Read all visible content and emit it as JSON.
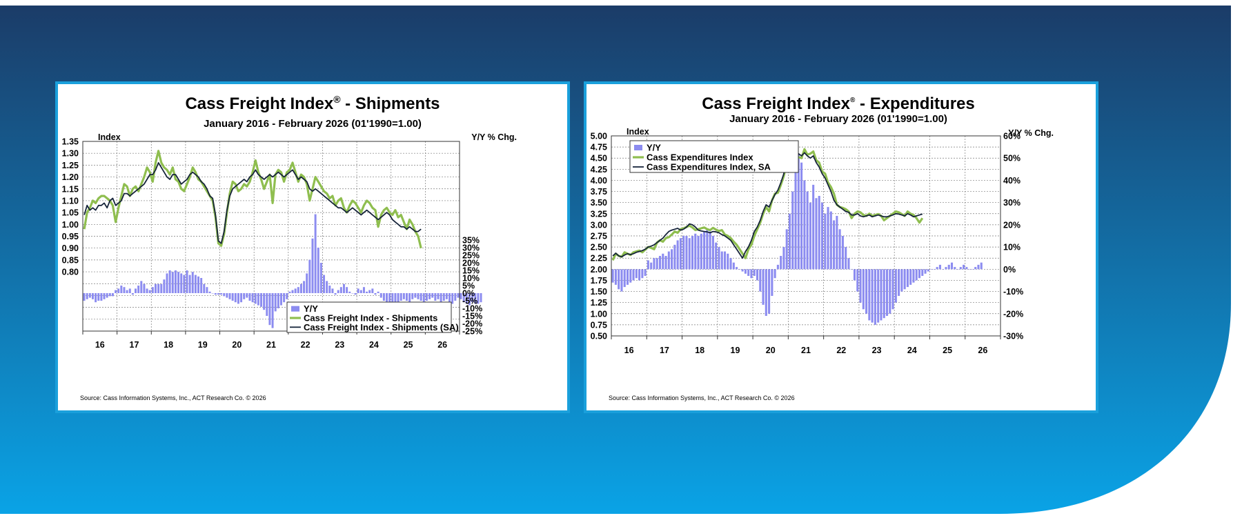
{
  "colors": {
    "bg_top": "#1b3c68",
    "bg_bottom": "#0aa3e6",
    "panel_border": "#1aa0dc",
    "bar": "#8c8cf0",
    "index_line": "#8fbe4f",
    "sa_line": "#16243a"
  },
  "charts": [
    {
      "id": "shipments",
      "title_main": "Cass Freight Index",
      "title_mark": "®",
      "title_rest": " - Shipments",
      "subtitle": "January 2016 - February 2026 (01'1990=1.00)",
      "left_axis_name": "Index",
      "right_axis_name": "Y/Y % Chg.",
      "source": "Source: Cass Information Systems, Inc., ACT Research Co. © 2026",
      "legend": [
        "Y/Y",
        "Cass Freight Index - Shipments",
        "Cass Freight Index - Shipments (SA)"
      ],
      "chart_data": {
        "type": "bar+line",
        "x_tick_labels": [
          "16",
          "17",
          "18",
          "19",
          "20",
          "21",
          "22",
          "23",
          "24",
          "25",
          "26"
        ],
        "x_range": [
          2016,
          2027
        ],
        "left_ticks": [
          "1.35",
          "1.30",
          "1.25",
          "1.20",
          "1.15",
          "1.10",
          "1.05",
          "1.00",
          "0.95",
          "0.90",
          "0.85",
          "0.80"
        ],
        "left_range": [
          0.55,
          1.35
        ],
        "right_ticks": [
          "35%",
          "30%",
          "25%",
          "20%",
          "15%",
          "10%",
          "5%",
          "0%",
          "-5%",
          "-10%",
          "-15%",
          "-20%",
          "-25%"
        ],
        "right_range": [
          -25,
          100
        ],
        "grid": true,
        "legend_position": "bottom-right",
        "series": [
          {
            "name": "Y/Y",
            "kind": "bar",
            "axis": "right",
            "start": "2016-01",
            "values": [
              -5,
              -4,
              -3,
              -4,
              -6,
              -5,
              -5,
              -4,
              -3,
              -2,
              -2,
              2,
              3,
              5,
              4,
              2,
              3,
              -1,
              3,
              5,
              8,
              6,
              3,
              2,
              4,
              6,
              6,
              6,
              9,
              13,
              15,
              14,
              15,
              14,
              13,
              12,
              15,
              12,
              14,
              12,
              11,
              10,
              6,
              4,
              1,
              0,
              -1,
              -1,
              -1,
              -2,
              -3,
              -4,
              -5,
              -6,
              -7,
              -6,
              -4,
              -3,
              -5,
              -6,
              -7,
              -8,
              -9,
              -11,
              -15,
              -21,
              -23,
              -12,
              -10,
              -8,
              -6,
              -4,
              1,
              2,
              3,
              4,
              6,
              8,
              13,
              22,
              36,
              52,
              30,
              20,
              12,
              8,
              5,
              3,
              -1,
              2,
              4,
              6,
              4,
              1,
              0,
              -1,
              3,
              2,
              4,
              1,
              2,
              3,
              -1,
              1,
              -3,
              -5,
              -7,
              -9,
              -10,
              -8,
              -6,
              -5,
              -4,
              -5,
              -6,
              -4,
              -3,
              -4,
              -5,
              -6,
              -5,
              -4,
              -3,
              -5,
              -4,
              -6,
              -5,
              -4,
              -6,
              -7,
              -5,
              -3,
              -4,
              -6,
              -7,
              -8,
              -6,
              -7,
              -7,
              -6
            ]
          },
          {
            "name": "Cass Freight Index - Shipments",
            "kind": "line",
            "axis": "left",
            "start": "2016-01",
            "values": [
              0.98,
              1.05,
              1.07,
              1.1,
              1.09,
              1.11,
              1.12,
              1.12,
              1.11,
              1.1,
              1.08,
              1.01,
              1.07,
              1.12,
              1.17,
              1.16,
              1.12,
              1.15,
              1.16,
              1.14,
              1.17,
              1.2,
              1.24,
              1.22,
              1.18,
              1.26,
              1.31,
              1.26,
              1.24,
              1.23,
              1.21,
              1.24,
              1.19,
              1.18,
              1.15,
              1.14,
              1.17,
              1.2,
              1.24,
              1.22,
              1.19,
              1.18,
              1.16,
              1.14,
              1.12,
              1.1,
              1.03,
              0.92,
              0.91,
              0.96,
              1.05,
              1.13,
              1.18,
              1.17,
              1.14,
              1.15,
              1.17,
              1.16,
              1.18,
              1.22,
              1.27,
              1.22,
              1.19,
              1.15,
              1.18,
              1.21,
              1.09,
              1.21,
              1.23,
              1.22,
              1.18,
              1.22,
              1.23,
              1.26,
              1.22,
              1.18,
              1.21,
              1.2,
              1.17,
              1.1,
              1.15,
              1.2,
              1.18,
              1.16,
              1.14,
              1.13,
              1.11,
              1.12,
              1.08,
              1.1,
              1.11,
              1.07,
              1.05,
              1.08,
              1.1,
              1.09,
              1.07,
              1.05,
              1.08,
              1.1,
              1.09,
              1.07,
              1.06,
              0.99,
              1.04,
              1.06,
              1.07,
              1.05,
              1.04,
              1.06,
              1.03,
              1.04,
              1.01,
              0.98,
              1.02,
              1.0,
              0.97,
              0.95,
              0.9
            ]
          },
          {
            "name": "Cass Freight Index - Shipments (SA)",
            "kind": "line",
            "axis": "left",
            "start": "2016-01",
            "values": [
              1.04,
              1.08,
              1.06,
              1.07,
              1.06,
              1.08,
              1.08,
              1.09,
              1.07,
              1.1,
              1.11,
              1.08,
              1.09,
              1.1,
              1.13,
              1.13,
              1.12,
              1.13,
              1.14,
              1.15,
              1.16,
              1.17,
              1.19,
              1.21,
              1.21,
              1.23,
              1.26,
              1.24,
              1.22,
              1.2,
              1.19,
              1.21,
              1.21,
              1.19,
              1.17,
              1.18,
              1.19,
              1.21,
              1.22,
              1.21,
              1.2,
              1.18,
              1.17,
              1.15,
              1.12,
              1.11,
              1.04,
              0.93,
              0.92,
              0.97,
              1.06,
              1.12,
              1.15,
              1.16,
              1.17,
              1.18,
              1.19,
              1.18,
              1.2,
              1.21,
              1.23,
              1.21,
              1.2,
              1.19,
              1.2,
              1.21,
              1.2,
              1.21,
              1.22,
              1.21,
              1.2,
              1.21,
              1.22,
              1.23,
              1.21,
              1.19,
              1.2,
              1.19,
              1.18,
              1.15,
              1.14,
              1.15,
              1.14,
              1.13,
              1.12,
              1.11,
              1.1,
              1.09,
              1.08,
              1.07,
              1.07,
              1.06,
              1.05,
              1.06,
              1.07,
              1.06,
              1.05,
              1.04,
              1.05,
              1.06,
              1.05,
              1.04,
              1.03,
              1.02,
              1.03,
              1.04,
              1.05,
              1.04,
              1.02,
              1.01,
              1.0,
              0.99,
              0.99,
              0.98,
              0.99,
              0.98,
              0.97,
              0.97,
              0.98
            ]
          }
        ]
      }
    },
    {
      "id": "expenditures",
      "title_main": "Cass Freight Index",
      "title_mark": "®",
      "title_rest": " - Expenditures",
      "subtitle": "January 2016 - February 2026 (01'1990=1.00)",
      "left_axis_name": "Index",
      "right_axis_name": "Y/Y % Chg.",
      "source": "Source: Cass Information Systems, Inc., ACT Research Co. © 2026",
      "legend": [
        "Y/Y",
        "Cass Expenditures Index",
        "Cass Expenditures Index, SA"
      ],
      "chart_data": {
        "type": "bar+line",
        "x_tick_labels": [
          "16",
          "17",
          "18",
          "19",
          "20",
          "21",
          "22",
          "23",
          "24",
          "25",
          "26"
        ],
        "x_range": [
          2016,
          2027
        ],
        "left_ticks": [
          "5.00",
          "4.75",
          "4.50",
          "4.25",
          "4.00",
          "3.75",
          "3.50",
          "3.25",
          "3.00",
          "2.75",
          "2.50",
          "2.25",
          "2.00",
          "1.75",
          "1.50",
          "1.25",
          "1.00",
          "0.75",
          "0.50"
        ],
        "left_range": [
          0.5,
          5.0
        ],
        "right_ticks": [
          "60%",
          "50%",
          "40%",
          "30%",
          "20%",
          "10%",
          "0%",
          "-10%",
          "-20%",
          "-30%"
        ],
        "right_range": [
          -30,
          60
        ],
        "grid": true,
        "legend_position": "top-left",
        "series": [
          {
            "name": "Y/Y",
            "kind": "bar",
            "axis": "right",
            "start": "2016-01",
            "values": [
              -6,
              -7,
              -9,
              -10,
              -8,
              -7,
              -6,
              -5,
              -4,
              -5,
              -4,
              -3,
              4,
              3,
              5,
              5,
              6,
              7,
              6,
              8,
              9,
              11,
              13,
              14,
              15,
              15,
              14,
              15,
              16,
              15,
              16,
              17,
              18,
              17,
              15,
              12,
              10,
              8,
              8,
              7,
              5,
              3,
              1,
              0,
              -1,
              -2,
              -3,
              -4,
              -3,
              -5,
              -10,
              -16,
              -21,
              -20,
              -12,
              -4,
              2,
              6,
              10,
              18,
              25,
              35,
              45,
              52,
              48,
              40,
              35,
              30,
              38,
              32,
              33,
              30,
              25,
              28,
              26,
              22,
              24,
              18,
              15,
              10,
              5,
              0,
              -5,
              -10,
              -15,
              -18,
              -20,
              -23,
              -24,
              -25,
              -24,
              -23,
              -22,
              -21,
              -20,
              -18,
              -15,
              -12,
              -10,
              -9,
              -8,
              -7,
              -6,
              -5,
              -4,
              -3,
              -2,
              -1,
              0,
              0,
              1,
              2,
              0,
              1,
              2,
              3,
              1,
              0,
              1,
              2,
              1,
              0,
              0,
              1,
              2,
              3
            ]
          },
          {
            "name": "Cass Expenditures Index",
            "kind": "line",
            "axis": "left",
            "start": "2016-01",
            "values": [
              2.2,
              2.35,
              2.3,
              2.28,
              2.38,
              2.35,
              2.32,
              2.38,
              2.4,
              2.42,
              2.38,
              2.44,
              2.5,
              2.48,
              2.45,
              2.6,
              2.65,
              2.62,
              2.7,
              2.72,
              2.78,
              2.85,
              2.82,
              2.9,
              2.92,
              2.95,
              2.98,
              2.94,
              2.88,
              2.9,
              2.92,
              2.94,
              2.9,
              2.88,
              2.93,
              2.89,
              2.86,
              2.88,
              2.78,
              2.75,
              2.7,
              2.62,
              2.55,
              2.45,
              2.35,
              2.25,
              2.45,
              2.55,
              2.75,
              2.9,
              3.05,
              3.25,
              3.4,
              3.3,
              3.55,
              3.7,
              3.72,
              3.9,
              4.1,
              4.4,
              4.5,
              4.35,
              4.45,
              4.52,
              4.5,
              4.7,
              4.58,
              4.6,
              4.65,
              4.45,
              4.4,
              4.2,
              4.15,
              3.95,
              3.85,
              3.7,
              3.45,
              3.4,
              3.38,
              3.35,
              3.3,
              3.15,
              3.25,
              3.3,
              3.28,
              3.22,
              3.2,
              3.25,
              3.2,
              3.22,
              3.24,
              3.2,
              3.1,
              3.15,
              3.2,
              3.25,
              3.3,
              3.28,
              3.24,
              3.2,
              3.3,
              3.25,
              3.22,
              3.15,
              3.05,
              3.15
            ]
          },
          {
            "name": "Cass Expenditures Index, SA",
            "kind": "line",
            "axis": "left",
            "start": "2016-01",
            "values": [
              2.3,
              2.36,
              2.3,
              2.28,
              2.32,
              2.35,
              2.33,
              2.35,
              2.38,
              2.4,
              2.42,
              2.45,
              2.5,
              2.52,
              2.55,
              2.6,
              2.65,
              2.7,
              2.78,
              2.85,
              2.88,
              2.9,
              2.92,
              2.88,
              2.9,
              2.95,
              3.02,
              3.0,
              2.95,
              2.88,
              2.86,
              2.85,
              2.84,
              2.82,
              2.85,
              2.84,
              2.82,
              2.78,
              2.75,
              2.7,
              2.65,
              2.55,
              2.45,
              2.35,
              2.25,
              2.4,
              2.5,
              2.65,
              2.85,
              2.95,
              3.1,
              3.3,
              3.45,
              3.4,
              3.55,
              3.68,
              3.78,
              3.95,
              4.15,
              4.5,
              4.55,
              4.4,
              4.5,
              4.6,
              4.55,
              4.62,
              4.55,
              4.5,
              4.55,
              4.4,
              4.3,
              4.15,
              4.05,
              3.9,
              3.75,
              3.55,
              3.45,
              3.4,
              3.35,
              3.3,
              3.28,
              3.22,
              3.22,
              3.25,
              3.2,
              3.18,
              3.2,
              3.22,
              3.18,
              3.2,
              3.22,
              3.2,
              3.18,
              3.18,
              3.2,
              3.22,
              3.25,
              3.24,
              3.22,
              3.2,
              3.25,
              3.22,
              3.18,
              3.2,
              3.22,
              3.24
            ]
          }
        ]
      }
    }
  ]
}
